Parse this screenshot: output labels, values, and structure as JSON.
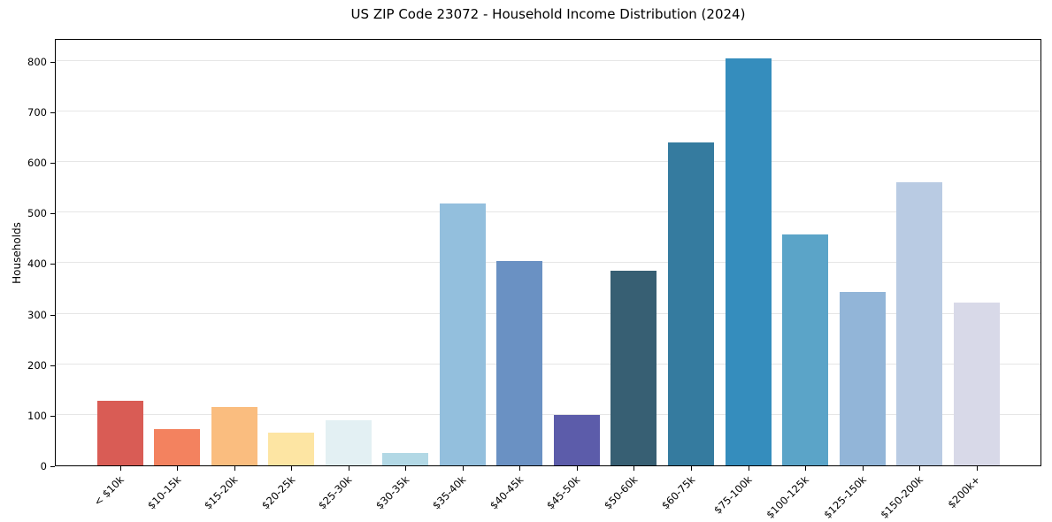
{
  "figure": {
    "background": "#ffffff",
    "text_color": "#000000",
    "spine_color": "#000000",
    "grid_color": "#e6e6e6"
  },
  "chart_data": {
    "type": "bar",
    "title": "US ZIP Code 23072 - Household Income Distribution (2024)",
    "xlabel": "",
    "ylabel": "Households",
    "categories": [
      "< $10k",
      "$10-15k",
      "$15-20k",
      "$20-25k",
      "$25-30k",
      "$30-35k",
      "$35-40k",
      "$40-45k",
      "$45-50k",
      "$50-60k",
      "$60-75k",
      "$75-100k",
      "$100-125k",
      "$125-150k",
      "$150-200k",
      "$200k+"
    ],
    "values": [
      127,
      72,
      116,
      65,
      90,
      25,
      517,
      405,
      100,
      385,
      639,
      804,
      456,
      343,
      560,
      322
    ],
    "bar_colors": [
      "#d95c55",
      "#f3825f",
      "#fabd7f",
      "#fde5a3",
      "#e3f0f3",
      "#b2d8e5",
      "#93bfdd",
      "#6a91c3",
      "#5c5caa",
      "#375f73",
      "#357b9f",
      "#358dbd",
      "#5ba4c8",
      "#92b5d8",
      "#b9cbe3",
      "#d8d9e8"
    ],
    "yticks": [
      0,
      100,
      200,
      300,
      400,
      500,
      600,
      700,
      800
    ],
    "ylim": [
      0,
      845
    ],
    "grid": "horizontal",
    "legend_position": "none"
  }
}
